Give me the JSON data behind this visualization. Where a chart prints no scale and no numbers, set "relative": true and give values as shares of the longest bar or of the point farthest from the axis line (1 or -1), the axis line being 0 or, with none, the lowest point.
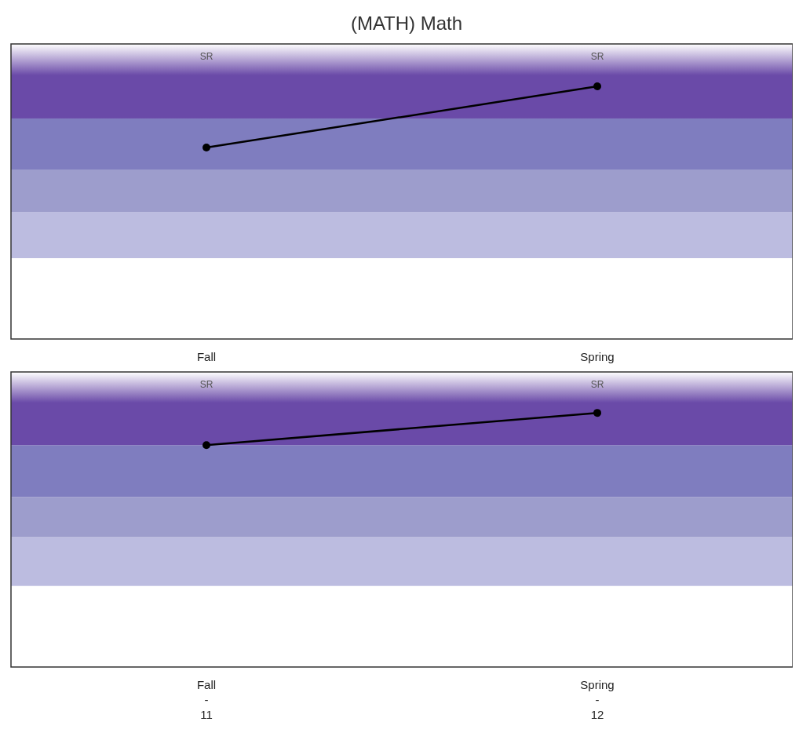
{
  "chart_data": [
    {
      "type": "line",
      "title": "(MATH) Math",
      "relative": true,
      "categories": [
        "Fall",
        "Spring"
      ],
      "series": [
        {
          "color": "#000000",
          "values": [
            0.758,
            1
          ]
        }
      ],
      "marker": "circle",
      "line_style": "solid",
      "annotations": [
        "SR",
        "SR"
      ],
      "bands": [
        {
          "axis": "y",
          "from": 0.32,
          "to": 0.503,
          "color": "#bcbce0"
        },
        {
          "axis": "y",
          "from": 0.503,
          "to": 0.671,
          "color": "#9d9dcc"
        },
        {
          "axis": "y",
          "from": 0.671,
          "to": 0.873,
          "color": "#7f7dbf"
        },
        {
          "axis": "y",
          "from": 0.873,
          "to": 1.168,
          "color": "#6a4aa8"
        }
      ]
    },
    {
      "type": "line",
      "relative": true,
      "categories": [
        "Fall\n-\n11",
        "Spring\n-\n12"
      ],
      "series": [
        {
          "color": "#000000",
          "values": [
            0.873,
            1
          ]
        }
      ],
      "marker": "circle",
      "line_style": "solid",
      "annotations": [
        "SR",
        "SR"
      ],
      "bands": [
        {
          "axis": "y",
          "from": 0.319,
          "to": 0.511,
          "color": "#bcbce0"
        },
        {
          "axis": "y",
          "from": 0.511,
          "to": 0.669,
          "color": "#9d9dcc"
        },
        {
          "axis": "y",
          "from": 0.669,
          "to": 0.873,
          "color": "#7f7dbf"
        },
        {
          "axis": "y",
          "from": 0.873,
          "to": 1.161,
          "color": "#6a4aa8"
        }
      ]
    }
  ]
}
